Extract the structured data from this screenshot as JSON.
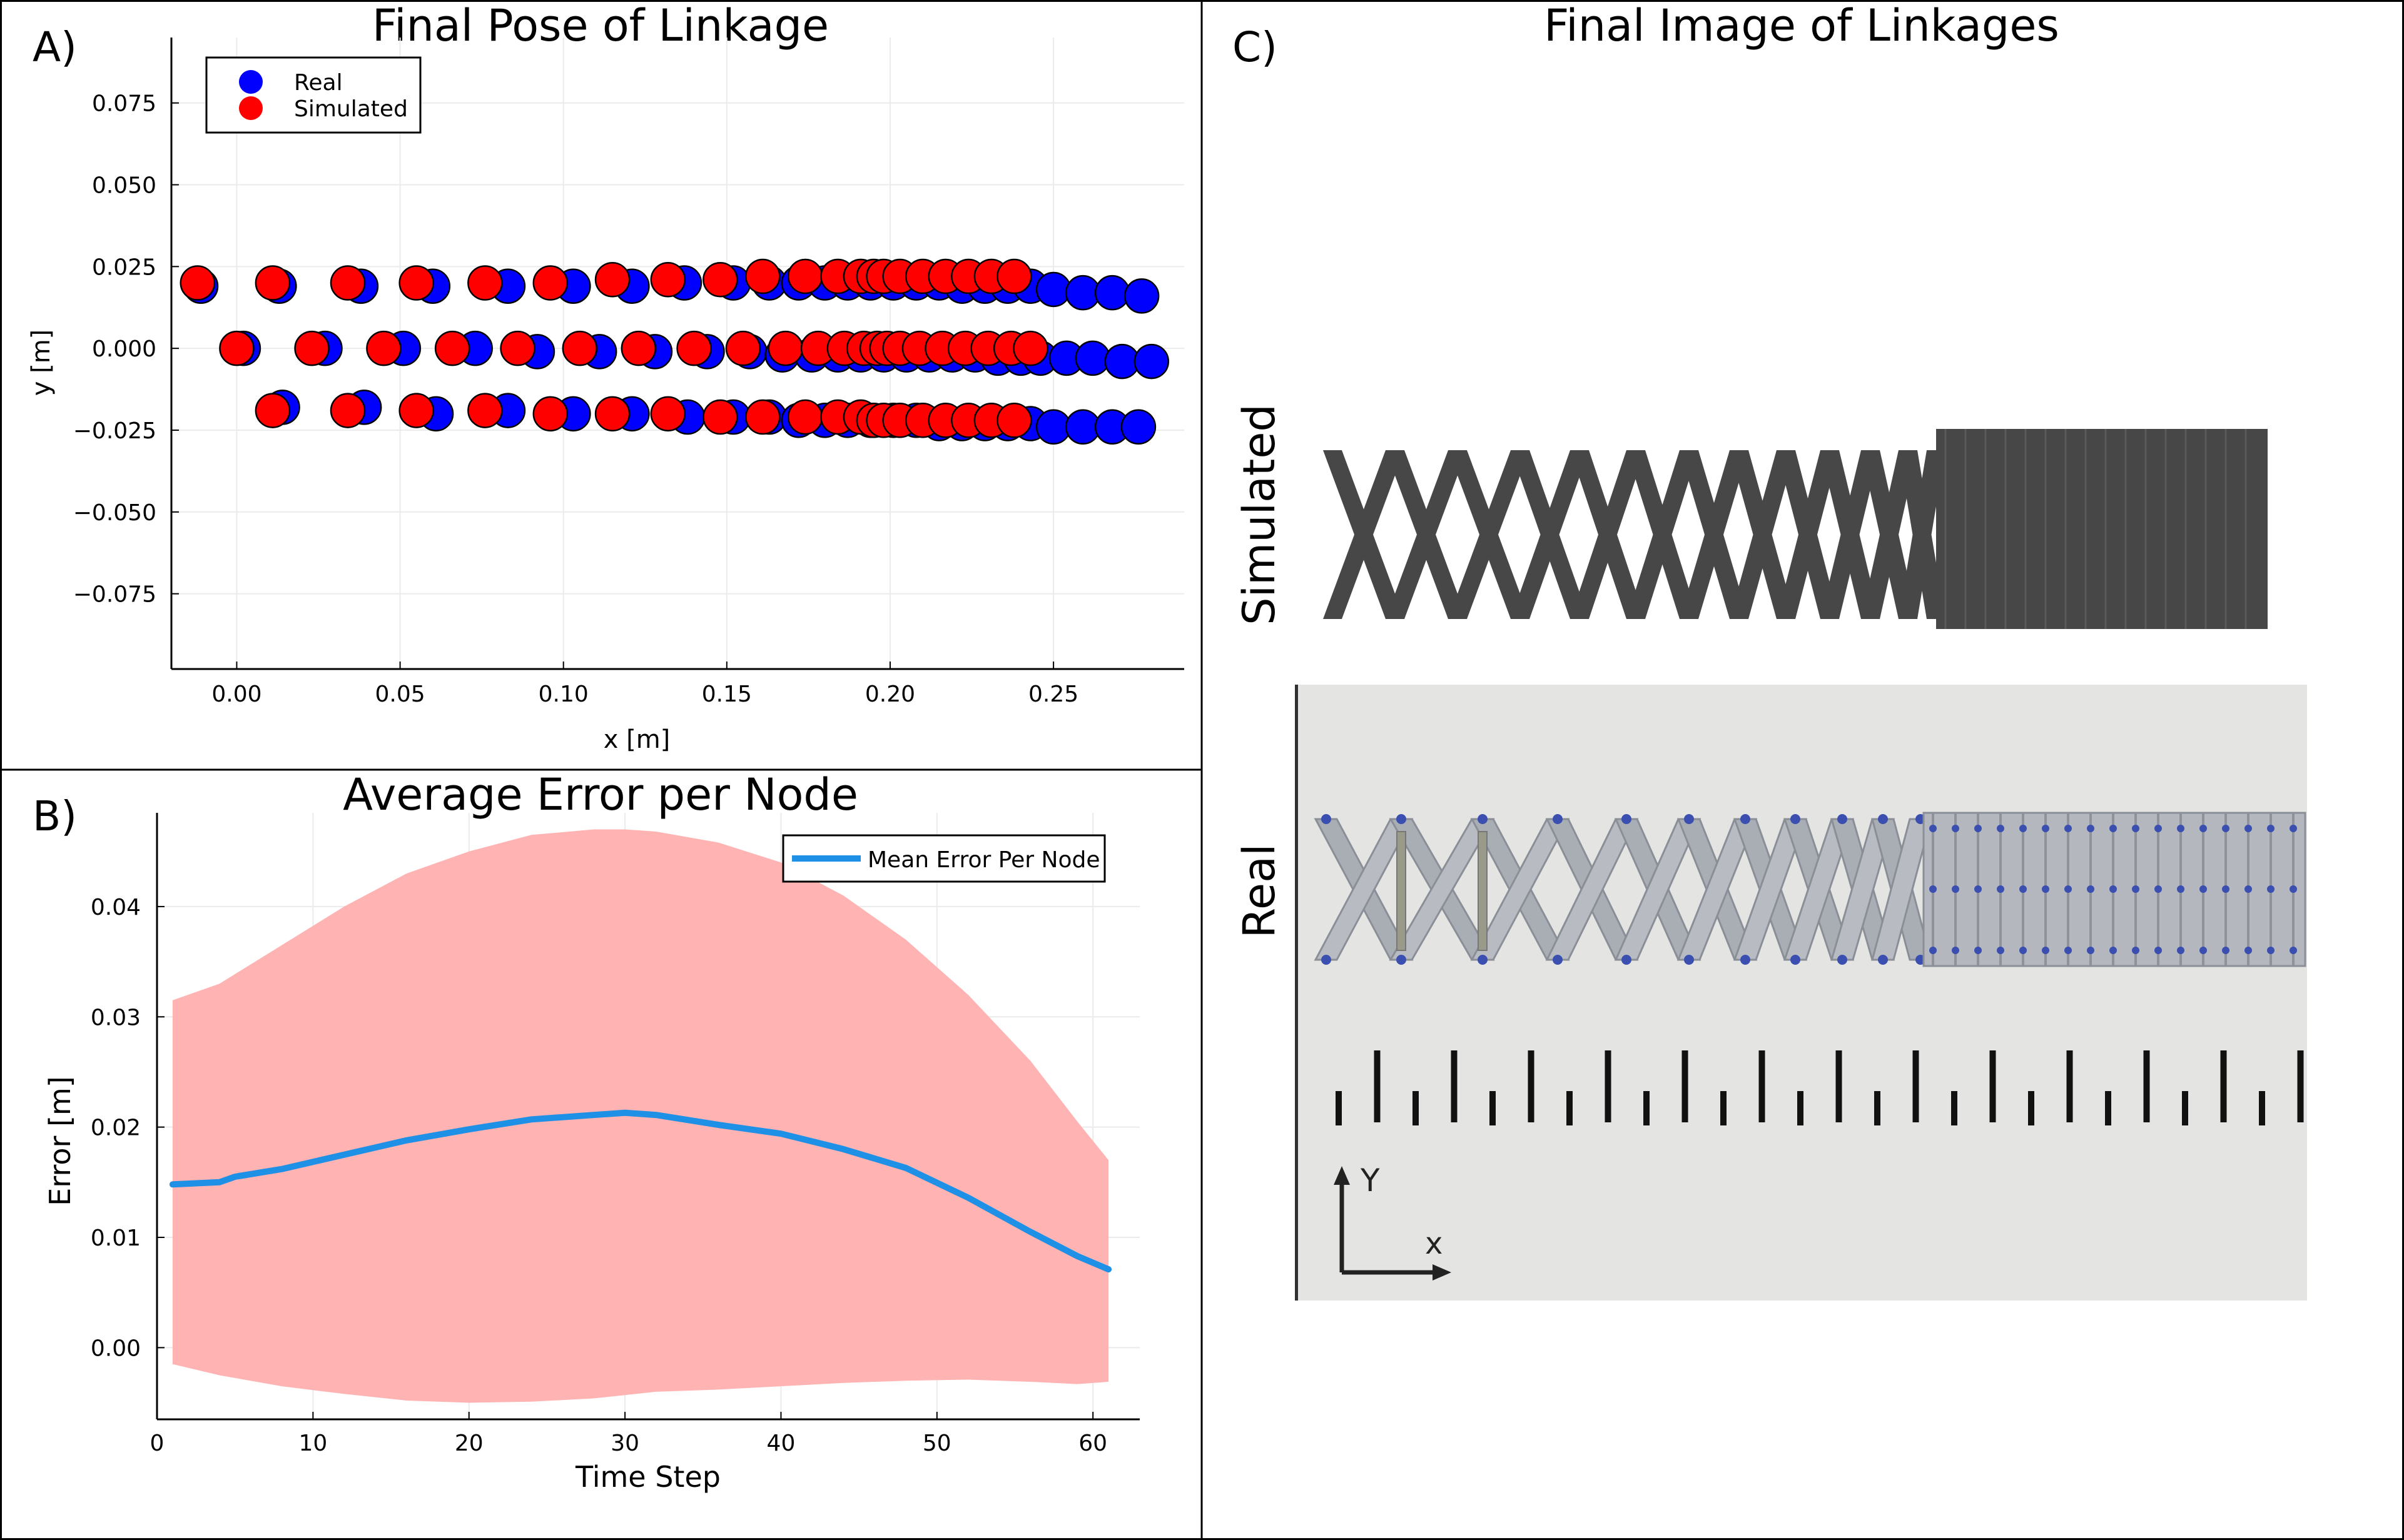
{
  "panel_a": {
    "letter": "A)",
    "chart_data": {
      "type": "scatter",
      "title": "Final Pose of Linkage",
      "xlabel": "x [m]",
      "ylabel": "y [m]",
      "xlim": [
        -0.02,
        0.29
      ],
      "ylim": [
        -0.098,
        0.095
      ],
      "xticks": [
        0.0,
        0.05,
        0.1,
        0.15,
        0.2,
        0.25
      ],
      "xtick_labels": [
        "0.00",
        "0.05",
        "0.10",
        "0.15",
        "0.20",
        "0.25"
      ],
      "yticks": [
        -0.075,
        -0.05,
        -0.025,
        0.0,
        0.025,
        0.05,
        0.075
      ],
      "ytick_labels": [
        "−0.075",
        "−0.050",
        "−0.025",
        "0.000",
        "0.025",
        "0.050",
        "0.075"
      ],
      "grid": true,
      "legend_position": "top-left",
      "series": [
        {
          "name": "Real",
          "color": "#0000ff",
          "points": [
            [
              -0.011,
              0.019
            ],
            [
              0.013,
              0.019
            ],
            [
              0.038,
              0.019
            ],
            [
              0.06,
              0.019
            ],
            [
              0.083,
              0.019
            ],
            [
              0.103,
              0.019
            ],
            [
              0.121,
              0.019
            ],
            [
              0.137,
              0.02
            ],
            [
              0.152,
              0.02
            ],
            [
              0.163,
              0.02
            ],
            [
              0.172,
              0.02
            ],
            [
              0.18,
              0.02
            ],
            [
              0.187,
              0.02
            ],
            [
              0.194,
              0.02
            ],
            [
              0.201,
              0.02
            ],
            [
              0.208,
              0.02
            ],
            [
              0.215,
              0.02
            ],
            [
              0.222,
              0.019
            ],
            [
              0.229,
              0.019
            ],
            [
              0.236,
              0.019
            ],
            [
              0.243,
              0.019
            ],
            [
              0.25,
              0.018
            ],
            [
              0.259,
              0.017
            ],
            [
              0.268,
              0.017
            ],
            [
              0.277,
              0.016
            ],
            [
              0.002,
              0.0
            ],
            [
              0.027,
              0.0
            ],
            [
              0.051,
              0.0
            ],
            [
              0.073,
              0.0
            ],
            [
              0.092,
              -0.001
            ],
            [
              0.111,
              -0.001
            ],
            [
              0.128,
              -0.001
            ],
            [
              0.144,
              -0.001
            ],
            [
              0.157,
              -0.001
            ],
            [
              0.167,
              -0.002
            ],
            [
              0.176,
              -0.002
            ],
            [
              0.184,
              -0.002
            ],
            [
              0.191,
              -0.002
            ],
            [
              0.198,
              -0.002
            ],
            [
              0.205,
              -0.002
            ],
            [
              0.212,
              -0.002
            ],
            [
              0.219,
              -0.002
            ],
            [
              0.226,
              -0.002
            ],
            [
              0.233,
              -0.003
            ],
            [
              0.24,
              -0.003
            ],
            [
              0.246,
              -0.003
            ],
            [
              0.254,
              -0.003
            ],
            [
              0.262,
              -0.003
            ],
            [
              0.271,
              -0.004
            ],
            [
              0.28,
              -0.004
            ],
            [
              0.014,
              -0.018
            ],
            [
              0.039,
              -0.018
            ],
            [
              0.061,
              -0.02
            ],
            [
              0.083,
              -0.019
            ],
            [
              0.103,
              -0.02
            ],
            [
              0.121,
              -0.02
            ],
            [
              0.138,
              -0.021
            ],
            [
              0.152,
              -0.021
            ],
            [
              0.163,
              -0.021
            ],
            [
              0.172,
              -0.022
            ],
            [
              0.18,
              -0.022
            ],
            [
              0.187,
              -0.022
            ],
            [
              0.194,
              -0.022
            ],
            [
              0.201,
              -0.022
            ],
            [
              0.208,
              -0.022
            ],
            [
              0.215,
              -0.023
            ],
            [
              0.222,
              -0.023
            ],
            [
              0.229,
              -0.023
            ],
            [
              0.236,
              -0.023
            ],
            [
              0.243,
              -0.023
            ],
            [
              0.25,
              -0.024
            ],
            [
              0.259,
              -0.024
            ],
            [
              0.268,
              -0.024
            ],
            [
              0.276,
              -0.024
            ]
          ]
        },
        {
          "name": "Simulated",
          "color": "#ff0000",
          "points": [
            [
              -0.012,
              0.02
            ],
            [
              0.011,
              0.02
            ],
            [
              0.034,
              0.02
            ],
            [
              0.055,
              0.02
            ],
            [
              0.076,
              0.02
            ],
            [
              0.096,
              0.02
            ],
            [
              0.115,
              0.021
            ],
            [
              0.132,
              0.021
            ],
            [
              0.148,
              0.021
            ],
            [
              0.161,
              0.022
            ],
            [
              0.174,
              0.022
            ],
            [
              0.184,
              0.022
            ],
            [
              0.191,
              0.022
            ],
            [
              0.195,
              0.022
            ],
            [
              0.198,
              0.022
            ],
            [
              0.203,
              0.022
            ],
            [
              0.21,
              0.022
            ],
            [
              0.217,
              0.022
            ],
            [
              0.224,
              0.022
            ],
            [
              0.231,
              0.022
            ],
            [
              0.238,
              0.022
            ],
            [
              0.0,
              0.0
            ],
            [
              0.023,
              0.0
            ],
            [
              0.045,
              0.0
            ],
            [
              0.066,
              0.0
            ],
            [
              0.086,
              0.0
            ],
            [
              0.105,
              0.0
            ],
            [
              0.123,
              0.0
            ],
            [
              0.14,
              0.0
            ],
            [
              0.155,
              0.0
            ],
            [
              0.168,
              0.0
            ],
            [
              0.178,
              0.0
            ],
            [
              0.186,
              0.0
            ],
            [
              0.192,
              0.0
            ],
            [
              0.196,
              0.0
            ],
            [
              0.199,
              0.0
            ],
            [
              0.203,
              0.0
            ],
            [
              0.209,
              0.0
            ],
            [
              0.216,
              0.0
            ],
            [
              0.223,
              0.0
            ],
            [
              0.23,
              0.0
            ],
            [
              0.237,
              0.0
            ],
            [
              0.243,
              0.0
            ],
            [
              0.011,
              -0.019
            ],
            [
              0.034,
              -0.019
            ],
            [
              0.055,
              -0.019
            ],
            [
              0.076,
              -0.019
            ],
            [
              0.096,
              -0.02
            ],
            [
              0.115,
              -0.02
            ],
            [
              0.132,
              -0.02
            ],
            [
              0.148,
              -0.021
            ],
            [
              0.161,
              -0.021
            ],
            [
              0.174,
              -0.021
            ],
            [
              0.184,
              -0.021
            ],
            [
              0.191,
              -0.021
            ],
            [
              0.195,
              -0.022
            ],
            [
              0.198,
              -0.022
            ],
            [
              0.203,
              -0.022
            ],
            [
              0.21,
              -0.022
            ],
            [
              0.217,
              -0.022
            ],
            [
              0.224,
              -0.022
            ],
            [
              0.231,
              -0.022
            ],
            [
              0.238,
              -0.022
            ]
          ]
        }
      ]
    }
  },
  "panel_b": {
    "letter": "B)",
    "chart_data": {
      "type": "line",
      "title": "Average Error per Node",
      "xlabel": "Time Step",
      "ylabel": "Error [m]",
      "xlim": [
        0,
        63
      ],
      "ylim": [
        -0.0065,
        0.0485
      ],
      "xticks": [
        0,
        10,
        20,
        30,
        40,
        50,
        60
      ],
      "xtick_labels": [
        "0",
        "10",
        "20",
        "30",
        "40",
        "50",
        "60"
      ],
      "yticks": [
        0.0,
        0.01,
        0.02,
        0.03,
        0.04
      ],
      "ytick_labels": [
        "0.00",
        "0.01",
        "0.02",
        "0.03",
        "0.04"
      ],
      "grid": true,
      "legend_position": "top-right",
      "series": [
        {
          "name": "Mean Error Per Node",
          "color": "#1e90e6",
          "x": [
            1,
            4,
            5,
            8,
            12,
            16,
            20,
            24,
            28,
            30,
            32,
            36,
            40,
            44,
            48,
            52,
            56,
            59,
            61
          ],
          "y": [
            0.0148,
            0.015,
            0.0155,
            0.0162,
            0.0175,
            0.0188,
            0.0198,
            0.0207,
            0.0211,
            0.0213,
            0.0211,
            0.0202,
            0.0194,
            0.018,
            0.0163,
            0.0136,
            0.0105,
            0.0083,
            0.0071
          ]
        }
      ],
      "band": {
        "color": "#ffb3b3",
        "x": [
          1,
          4,
          8,
          12,
          16,
          20,
          24,
          28,
          30,
          32,
          36,
          40,
          44,
          48,
          52,
          56,
          59,
          61
        ],
        "upper": [
          0.0315,
          0.033,
          0.0365,
          0.04,
          0.043,
          0.045,
          0.0465,
          0.047,
          0.047,
          0.0468,
          0.0458,
          0.044,
          0.041,
          0.037,
          0.032,
          0.026,
          0.0205,
          0.017
        ],
        "lower": [
          -0.0015,
          -0.0025,
          -0.0035,
          -0.0042,
          -0.0048,
          -0.005,
          -0.0049,
          -0.0046,
          -0.0043,
          -0.004,
          -0.0038,
          -0.0035,
          -0.0032,
          -0.003,
          -0.0029,
          -0.0031,
          -0.0033,
          -0.0031
        ]
      }
    }
  },
  "panel_c": {
    "letter": "C)",
    "title": "Final Image of Linkages",
    "simulated_label": "Simulated",
    "real_label": "Real",
    "axis_y_label": "Y",
    "axis_x_label": "x",
    "linkage_color": "#474747",
    "photo_background": "#e4e4e2"
  }
}
